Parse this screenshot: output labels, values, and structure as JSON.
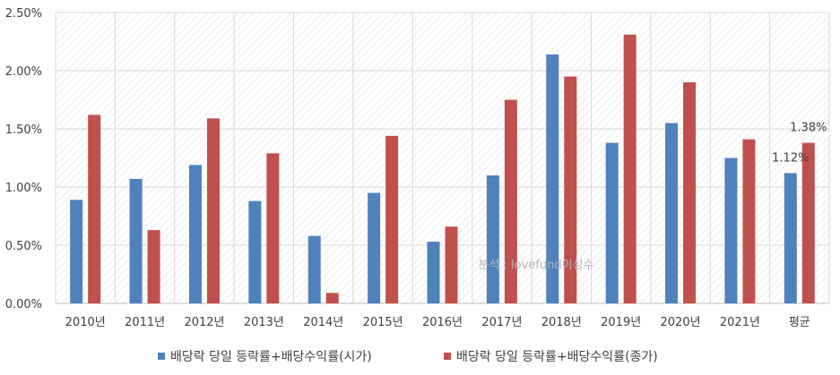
{
  "chart_data": {
    "type": "bar",
    "categories": [
      "2010년",
      "2011년",
      "2012년",
      "2013년",
      "2014년",
      "2015년",
      "2016년",
      "2017년",
      "2018년",
      "2019년",
      "2020년",
      "2021년",
      "평균"
    ],
    "series": [
      {
        "name": "배당락 당일 등락률+배당수익률(시가)",
        "color": "#4F81BD",
        "values": [
          0.89,
          1.07,
          1.19,
          0.88,
          0.58,
          0.95,
          0.53,
          1.1,
          2.14,
          1.38,
          1.55,
          1.25,
          1.12
        ]
      },
      {
        "name": "배당락 당일 등락률+배당수익률(종가)",
        "color": "#C0504D",
        "values": [
          1.62,
          0.63,
          1.59,
          1.29,
          0.09,
          1.44,
          0.66,
          1.75,
          1.95,
          2.31,
          1.9,
          1.41,
          1.38
        ]
      }
    ],
    "ylim": [
      0,
      2.5
    ],
    "yticks": [
      "0.00%",
      "0.50%",
      "1.00%",
      "1.50%",
      "2.00%",
      "2.50%"
    ],
    "data_labels": [
      {
        "series": 0,
        "category": "평균",
        "text": "1.12%"
      },
      {
        "series": 1,
        "category": "평균",
        "text": "1.38%"
      }
    ],
    "grid": true,
    "legend_position": "bottom",
    "watermark": "분석 : lovefund이성수"
  }
}
